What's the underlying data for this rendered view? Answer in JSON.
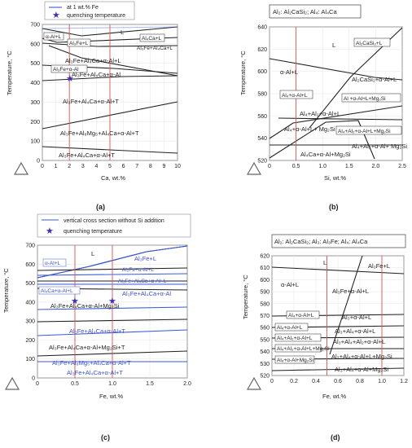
{
  "chart_data": [
    {
      "panel": "(a)",
      "type": "line",
      "title": "",
      "xlabel": "Ca, wt.%",
      "ylabel": "Temperature, °C",
      "xlim": [
        0,
        10
      ],
      "ylim": [
        0,
        700
      ],
      "xticks": [
        0,
        1,
        2,
        3,
        4,
        5,
        6,
        7,
        8,
        9,
        10
      ],
      "yticks": [
        0,
        100,
        200,
        300,
        400,
        500,
        600,
        700
      ],
      "legend": [
        "at 1 wt.% Fe",
        "quenching temperature"
      ],
      "quench_points": [
        {
          "x": 2,
          "y": 450
        }
      ],
      "red_verticals": [
        2,
        5
      ],
      "regions": [
        "L",
        "α-Al+L",
        "Al₃Fe+L",
        "Al₄Ca+L",
        "Al₃Fe+Al₄Ca+L",
        "Al₃Fe+α-Al",
        "Al₃Fe+Al₄Ca+α-Al+L",
        "Al₃Fe+Al₄Ca+α-Al",
        "Al₃Fe+Al₄Ca+α-Al+T",
        "Al₃Fe+Al₈Mg₅+Al₄Ca+α-Al+T",
        "Al₃Fe+Al₄Ca+α-Al+T"
      ]
    },
    {
      "panel": "(b)",
      "type": "line",
      "title": "Al₂: Al₂CaSi₂; Al₄: Al₄Ca",
      "xlabel": "Si, wt.%",
      "ylabel": "Temperature, °C",
      "xlim": [
        0,
        2.5
      ],
      "ylim": [
        520,
        640
      ],
      "xticks": [
        0,
        0.5,
        1.0,
        1.5,
        2.0,
        2.5
      ],
      "yticks": [
        520,
        540,
        560,
        580,
        600,
        620,
        640
      ],
      "red_verticals": [
        0.5
      ],
      "regions": [
        "L",
        "Al₂CaSi₂+L",
        "α-Al+L",
        "Al₂CaSi₂+α-Al+L",
        "Al₄+α-Al+L",
        "Al +α-Al+L+Mg₂Si",
        "Al₄+Al₂+α-Al+L",
        "Al₄+α-Al+L+ Mg₂Si",
        "Al₄+Al₂+α-Al+L+Mg₂Si",
        "Al₄+Al₂+α-Al+ Mg₂Si",
        "Al₄Ca+α-Al+Mg₂Si"
      ]
    },
    {
      "panel": "(c)",
      "type": "line",
      "title": "",
      "xlabel": "Fe, wt.%",
      "ylabel": "Temperature, °C",
      "xlim": [
        0,
        2.0
      ],
      "ylim": [
        0,
        700
      ],
      "xticks": [
        0,
        0.5,
        1.0,
        1.5,
        2.0
      ],
      "yticks": [
        0,
        100,
        200,
        300,
        400,
        500,
        600,
        700
      ],
      "legend": [
        "vertical cross section without Si addition",
        "quenching temperature"
      ],
      "quench_points": [
        {
          "x": 0.5,
          "y": 450
        },
        {
          "x": 1.0,
          "y": 450
        }
      ],
      "red_verticals": [
        0.5,
        1.0
      ],
      "regions": [
        "L",
        "α-Al+L",
        "Al₃Fe+L",
        "Al₃Fe+α-Al+L",
        "Al₃Fe+Al₄Ca+α-Al+L",
        "Al₄Ca+α-Al+L",
        "Al₃Fe+Al₄Ca+α-Al",
        "Al₃Fe+Al₄Ca+α-Al+Mg₂Si",
        "Al₃Fe+Al₄Ca+α-Al+T",
        "Al₃Fe+Al₄Ca+α-Al+Mg₂Si+T",
        "Al₃Fe+Al₈Mg₅+Al₄Ca+α-Al+T",
        "Al₃Fe+Al₄Ca+α-Al+T"
      ]
    },
    {
      "panel": "(d)",
      "type": "line",
      "title": "Al₂: Al₂CaSi₂; Al₃: Al₃Fe; Al₄: Al₄Ca",
      "xlabel": "Fe, wt.%",
      "ylabel": "Temperature, °C",
      "xlim": [
        0,
        1.2
      ],
      "ylim": [
        520,
        620
      ],
      "xticks": [
        0,
        0.2,
        0.4,
        0.6,
        0.8,
        1.0,
        1.2
      ],
      "yticks": [
        520,
        530,
        540,
        550,
        560,
        570,
        580,
        590,
        600,
        610,
        620
      ],
      "red_verticals": [
        0.5,
        1.0
      ],
      "regions": [
        "L",
        "Al₃Fe+L",
        "α-Al+L",
        "Al₃Fe+α-Al+L",
        "Al₄+α-Al+L",
        "Al₃+α-Al+L",
        "Al₄+α-Al+L",
        "Al₃+Al₄+α-Al+L",
        "Al₄+Al₂+α-Al+L",
        "Al₃+Al₄+Al₂+α-Al+L",
        "Al₄+Al₂+α-Al+L+Mg₂Si",
        "Al₃+Al₄+α-Al+L+Mg₂Si",
        "Al₄+α-Al+Mg₂Si",
        "Al₃+Al₄+α-Al+Mg₂Si"
      ]
    }
  ],
  "captions": [
    "(a)",
    "(b)",
    "(c)",
    "(d)"
  ]
}
